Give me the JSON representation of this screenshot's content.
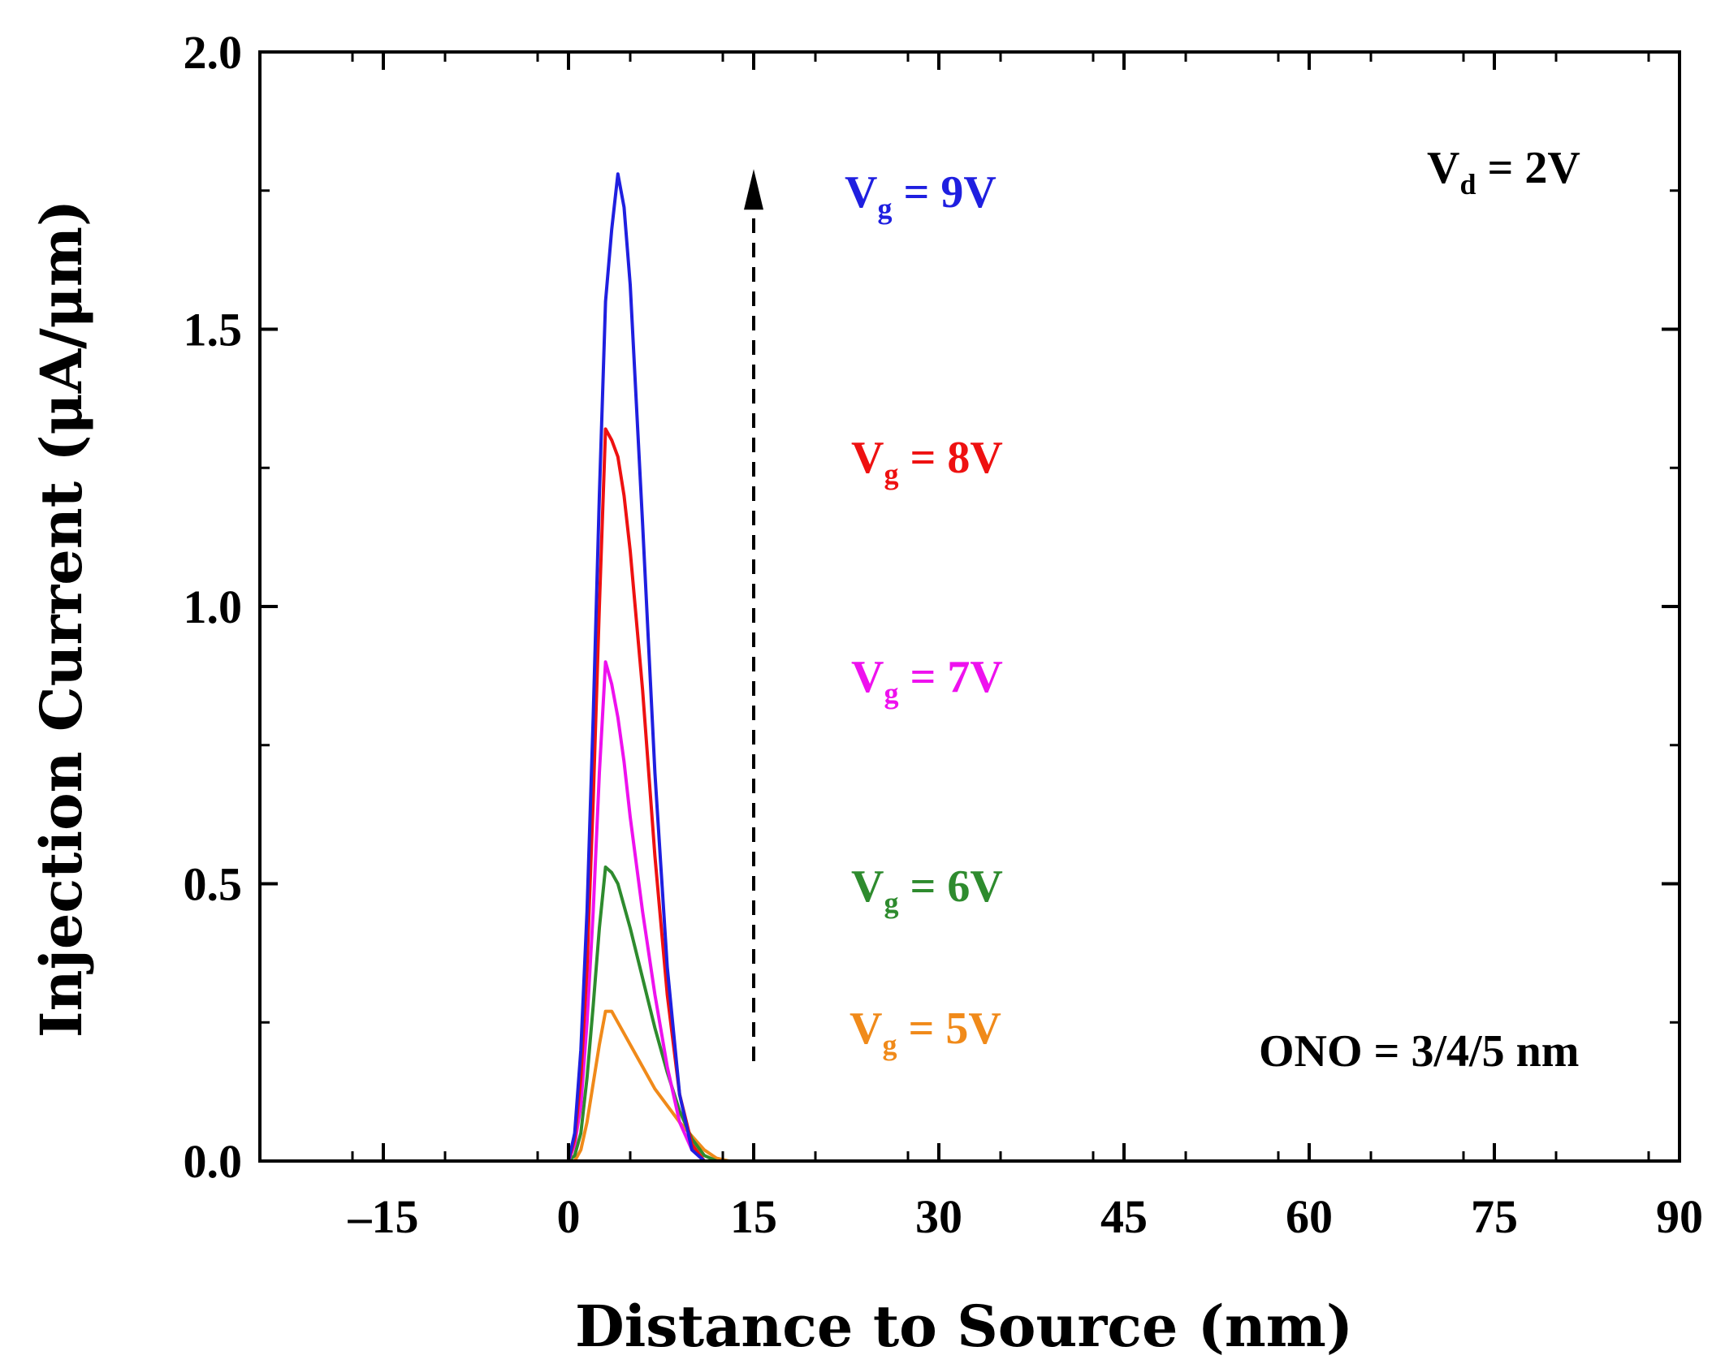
{
  "chart_data": {
    "type": "line",
    "title": "",
    "xlabel": "Distance to Source (nm)",
    "ylabel": "Injection Current (μA/μm)",
    "xlim": [
      -25,
      90
    ],
    "ylim": [
      0,
      2.0
    ],
    "xticks": [
      -15,
      0,
      15,
      30,
      45,
      60,
      75,
      90
    ],
    "xtick_labels": [
      "–15",
      "0",
      "15",
      "30",
      "45",
      "60",
      "75",
      "90"
    ],
    "yticks": [
      0,
      0.5,
      1.0,
      1.5,
      2.0
    ],
    "ytick_labels": [
      "0.0",
      "0.5",
      "1.0",
      "1.5",
      "2.0"
    ],
    "grid": false,
    "series": [
      {
        "name": "Vg = 9V",
        "label_main": "V",
        "label_sub": "g",
        "label_rest": " = 9V",
        "color": "#1f1fe0",
        "x": [
          -25,
          0,
          0.5,
          1,
          1.5,
          2,
          2.5,
          3,
          3.5,
          4,
          4.5,
          5,
          6,
          7,
          8,
          9,
          10,
          11,
          90
        ],
        "y": [
          0,
          0,
          0.05,
          0.2,
          0.45,
          0.8,
          1.2,
          1.55,
          1.68,
          1.78,
          1.72,
          1.58,
          1.15,
          0.7,
          0.35,
          0.12,
          0.02,
          0,
          0
        ]
      },
      {
        "name": "Vg = 8V",
        "label_main": "V",
        "label_sub": "g",
        "label_rest": " = 8V",
        "color": "#ee1111",
        "x": [
          -25,
          0,
          0.5,
          1,
          1.5,
          2,
          2.5,
          3,
          3.5,
          4,
          4.5,
          5,
          6,
          7,
          8,
          9,
          10,
          11,
          90
        ],
        "y": [
          0,
          0,
          0.04,
          0.15,
          0.35,
          0.65,
          1.0,
          1.32,
          1.3,
          1.27,
          1.2,
          1.1,
          0.85,
          0.55,
          0.3,
          0.12,
          0.03,
          0,
          0
        ]
      },
      {
        "name": "Vg = 7V",
        "label_main": "V",
        "label_sub": "g",
        "label_rest": " = 7V",
        "color": "#ee11ee",
        "x": [
          -25,
          0,
          0.5,
          1,
          1.5,
          2,
          2.5,
          3,
          3.5,
          4,
          4.5,
          5,
          6,
          7,
          8,
          9,
          10,
          11,
          90
        ],
        "y": [
          0,
          0,
          0.03,
          0.1,
          0.25,
          0.45,
          0.7,
          0.9,
          0.86,
          0.8,
          0.72,
          0.62,
          0.45,
          0.3,
          0.17,
          0.07,
          0.02,
          0,
          0
        ]
      },
      {
        "name": "Vg = 6V",
        "label_main": "V",
        "label_sub": "g",
        "label_rest": " = 6V",
        "color": "#2e8b2e",
        "x": [
          -25,
          0,
          0.5,
          1,
          1.5,
          2,
          2.5,
          3,
          3.5,
          4,
          4.5,
          5,
          6,
          7,
          8,
          9,
          10,
          11,
          12,
          90
        ],
        "y": [
          0,
          0,
          0.01,
          0.05,
          0.15,
          0.28,
          0.42,
          0.53,
          0.52,
          0.5,
          0.46,
          0.42,
          0.33,
          0.24,
          0.16,
          0.09,
          0.04,
          0.01,
          0,
          0
        ]
      },
      {
        "name": "Vg = 5V",
        "label_main": "V",
        "label_sub": "g",
        "label_rest": " = 5V",
        "color": "#f08a1a",
        "x": [
          -25,
          0,
          0.5,
          1,
          1.5,
          2,
          2.5,
          3,
          3.5,
          4,
          5,
          6,
          7,
          8,
          9,
          10,
          11,
          12,
          13,
          90
        ],
        "y": [
          0,
          0,
          0,
          0.02,
          0.07,
          0.14,
          0.21,
          0.27,
          0.27,
          0.25,
          0.21,
          0.17,
          0.13,
          0.1,
          0.07,
          0.045,
          0.02,
          0.005,
          0,
          0
        ]
      }
    ],
    "annotations": {
      "vd_main": "V",
      "vd_sub": "d",
      "vd_rest": " = 2V",
      "ono": "ONO = 3/4/5 nm",
      "arrow_x": 15,
      "arrow_y_from": 0.18,
      "arrow_y_to": 1.78
    }
  }
}
